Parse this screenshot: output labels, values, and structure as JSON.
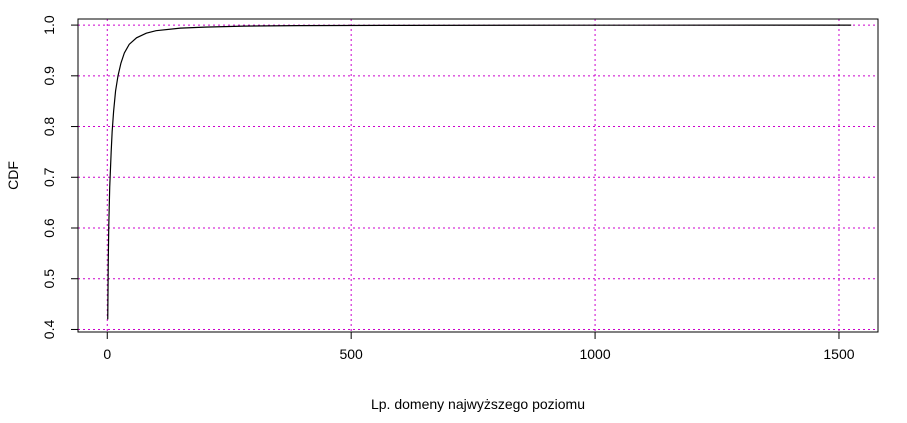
{
  "chart_data": {
    "type": "line",
    "title": "",
    "xlabel": "Lp. domeny najwyższego poziomu",
    "ylabel": "CDF",
    "xlim": [
      -60,
      1580
    ],
    "ylim": [
      0.395,
      1.012
    ],
    "x_ticks": [
      {
        "value": 0,
        "label": "0"
      },
      {
        "value": 500,
        "label": "500"
      },
      {
        "value": 1000,
        "label": "1000"
      },
      {
        "value": 1500,
        "label": "1500"
      }
    ],
    "y_ticks": [
      {
        "value": 0.4,
        "label": "0.4"
      },
      {
        "value": 0.5,
        "label": "0.5"
      },
      {
        "value": 0.6,
        "label": "0.6"
      },
      {
        "value": 0.7,
        "label": "0.7"
      },
      {
        "value": 0.8,
        "label": "0.8"
      },
      {
        "value": 0.9,
        "label": "0.9"
      },
      {
        "value": 1.0,
        "label": "1.0"
      }
    ],
    "grid": true,
    "grid_color": "#cc00cc",
    "series": [
      {
        "color": "#000000",
        "points": [
          [
            1,
            0.42
          ],
          [
            2,
            0.53
          ],
          [
            3,
            0.6
          ],
          [
            5,
            0.68
          ],
          [
            8,
            0.75
          ],
          [
            10,
            0.79
          ],
          [
            13,
            0.83
          ],
          [
            17,
            0.87
          ],
          [
            22,
            0.9
          ],
          [
            28,
            0.925
          ],
          [
            35,
            0.945
          ],
          [
            45,
            0.962
          ],
          [
            60,
            0.975
          ],
          [
            80,
            0.984
          ],
          [
            100,
            0.989
          ],
          [
            150,
            0.994
          ],
          [
            200,
            0.996
          ],
          [
            280,
            0.998
          ],
          [
            390,
            0.999
          ],
          [
            600,
            0.9995
          ],
          [
            1000,
            0.9998
          ],
          [
            1525,
            1.0
          ]
        ]
      }
    ]
  }
}
